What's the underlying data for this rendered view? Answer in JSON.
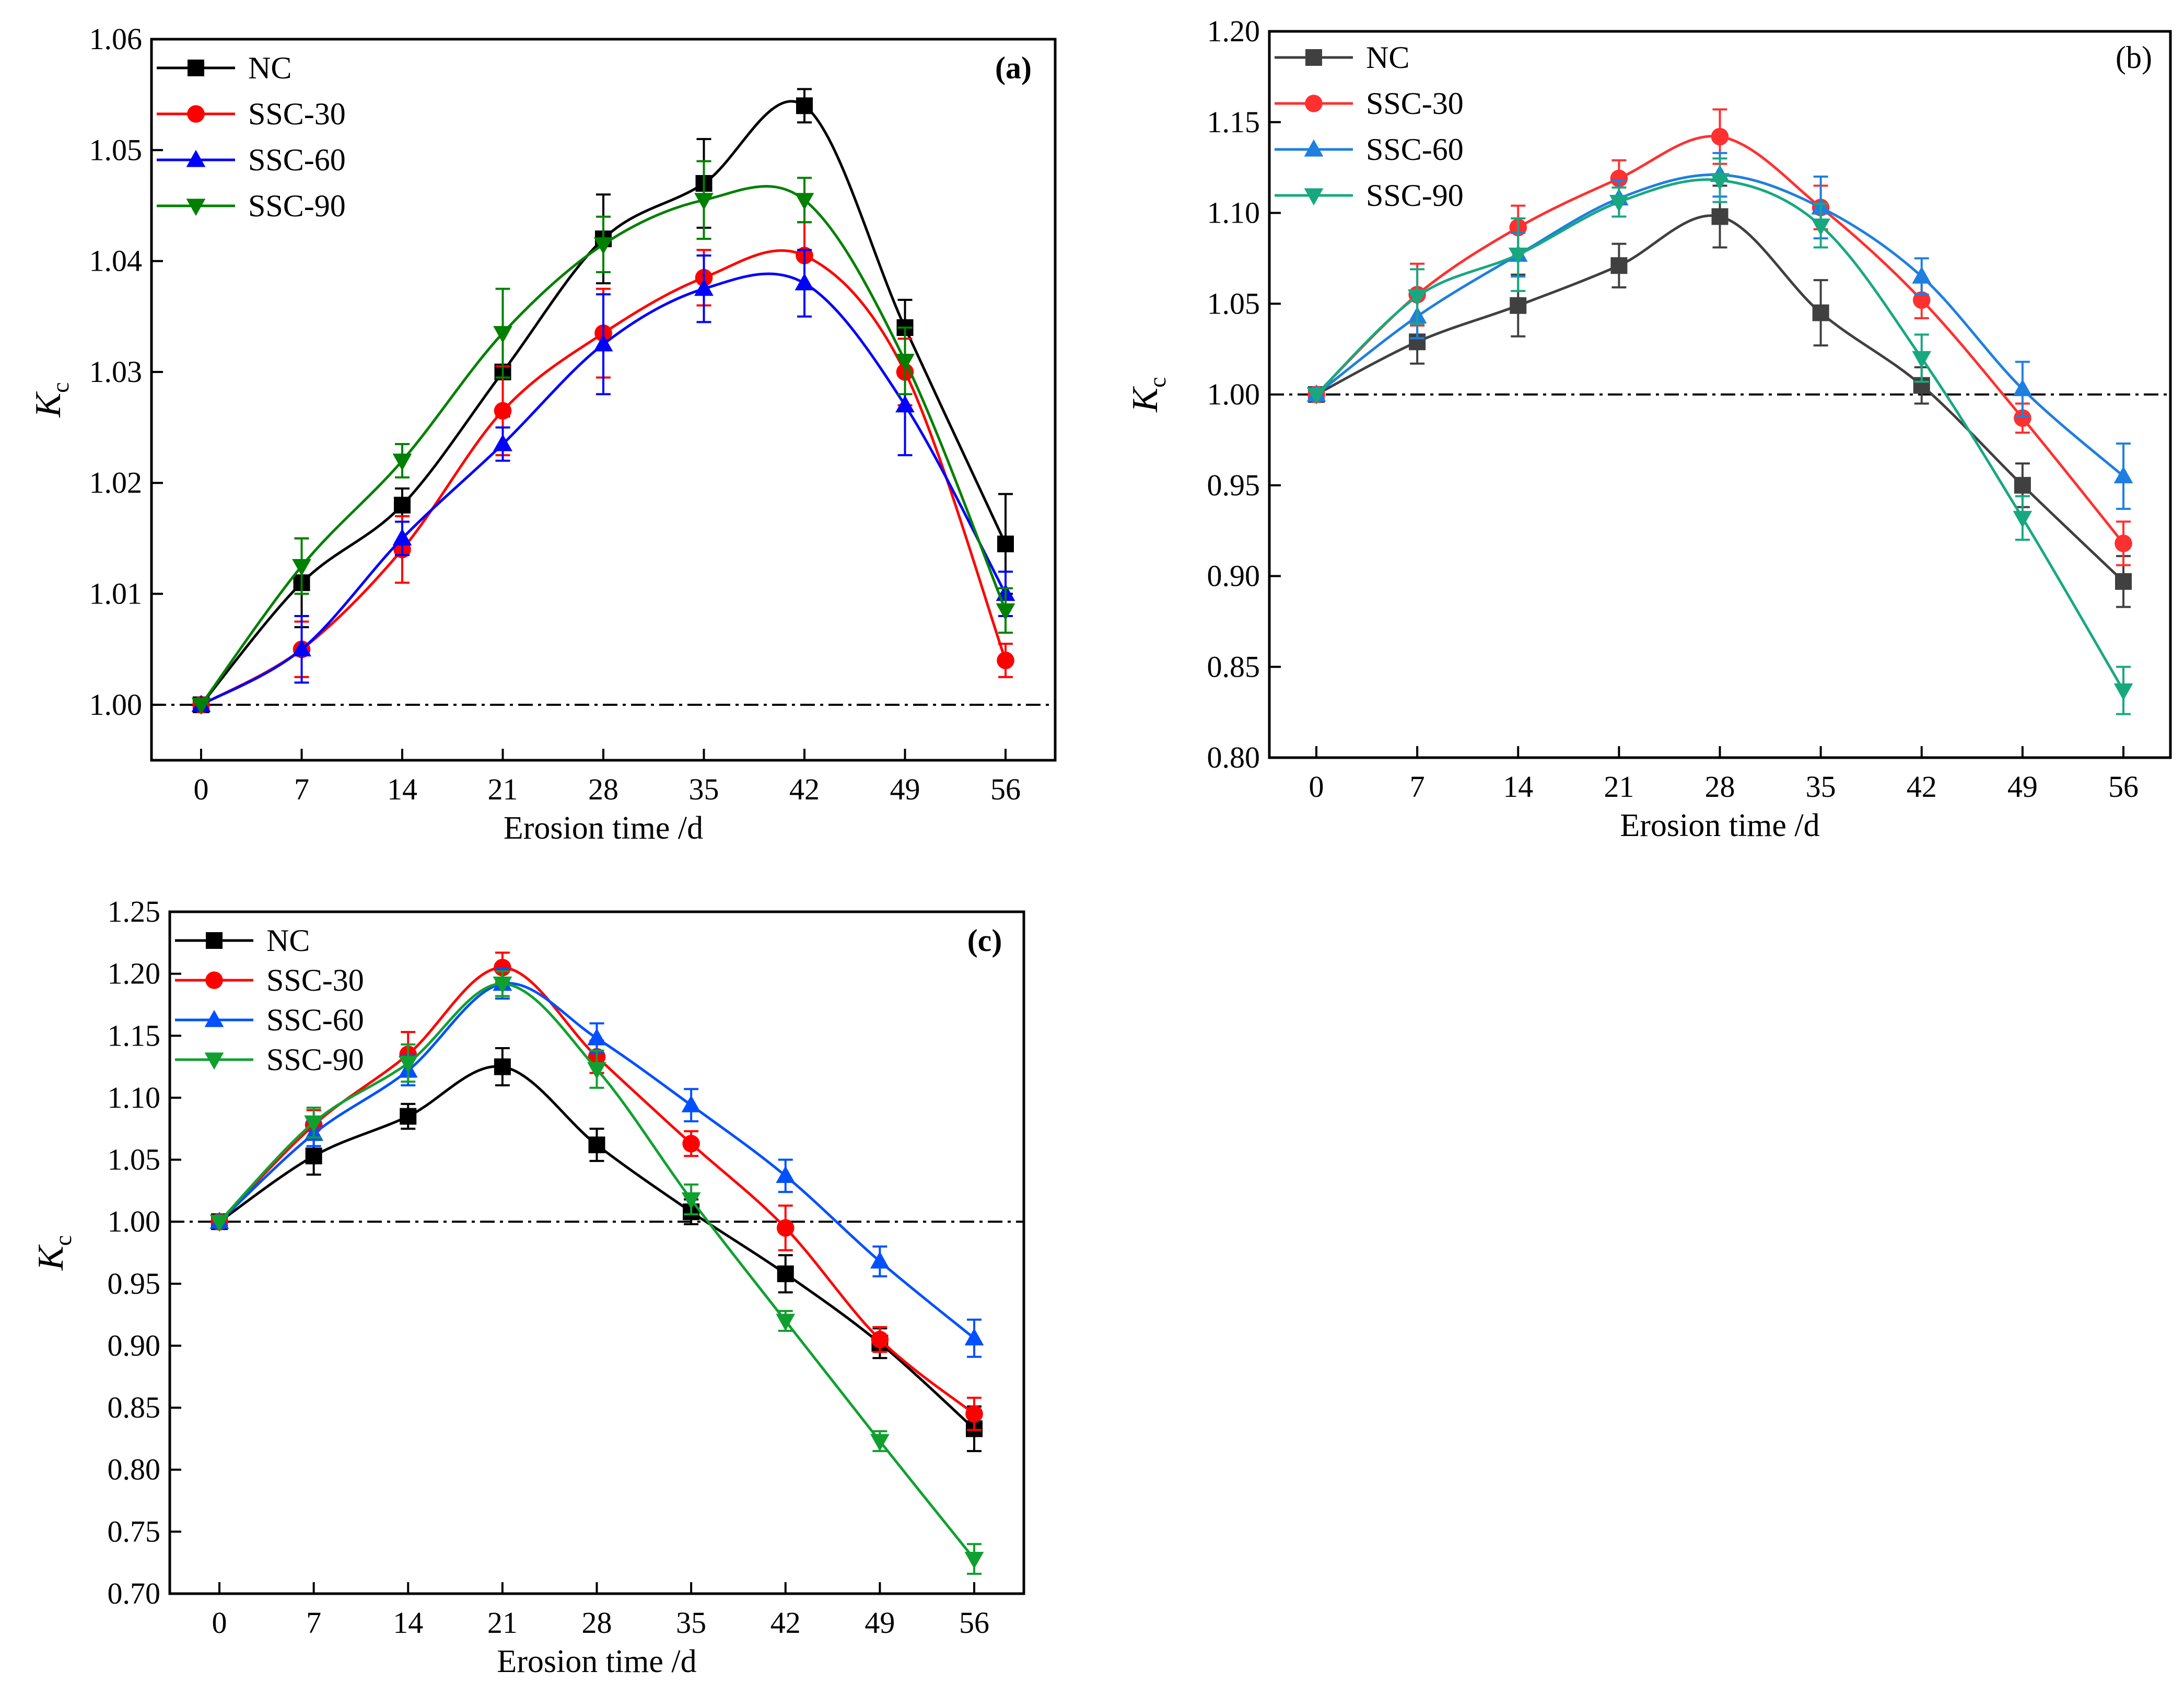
{
  "chart_data": [
    {
      "type": "line",
      "panel_label": "(a)",
      "label_bold": true,
      "xlabel": "Erosion time /d",
      "ylabel": "K",
      "ylabel_sub": "c",
      "x": [
        0,
        7,
        14,
        21,
        28,
        35,
        42,
        49,
        56
      ],
      "xticks": [
        "0",
        "7",
        "14",
        "21",
        "28",
        "35",
        "42",
        "49",
        "56"
      ],
      "ylim": [
        0.995,
        1.06
      ],
      "yticks": [
        "1.00",
        "1.01",
        "1.02",
        "1.03",
        "1.04",
        "1.05",
        "1.06"
      ],
      "reference_line": 1.0,
      "legend_position": "top-left",
      "series": [
        {
          "name": "NC",
          "color": "#000000",
          "marker": "square",
          "values": [
            1.0,
            1.011,
            1.018,
            1.03,
            1.042,
            1.047,
            1.054,
            1.034,
            1.0145
          ],
          "errors": [
            0,
            0.004,
            0.0015,
            0.004,
            0.004,
            0.004,
            0.0015,
            0.0025,
            0.0045
          ]
        },
        {
          "name": "SSC-30",
          "color": "#ff0000",
          "marker": "circle",
          "values": [
            1.0,
            1.005,
            1.014,
            1.0265,
            1.0335,
            1.0385,
            1.0405,
            1.03,
            1.004
          ],
          "errors": [
            0,
            0.0025,
            0.003,
            0.004,
            0.004,
            0.0025,
            0.003,
            0.003,
            0.0015
          ]
        },
        {
          "name": "SSC-60",
          "color": "#0000ff",
          "marker": "triangle-up",
          "values": [
            1.0,
            1.005,
            1.015,
            1.0235,
            1.0325,
            1.0375,
            1.038,
            1.027,
            1.01
          ],
          "errors": [
            0,
            0.003,
            0.0015,
            0.0015,
            0.0045,
            0.003,
            0.003,
            0.0045,
            0.002
          ]
        },
        {
          "name": "SSC-90",
          "color": "#008000",
          "marker": "triangle-down",
          "values": [
            1.0,
            1.0125,
            1.022,
            1.0335,
            1.0415,
            1.0455,
            1.0455,
            1.031,
            1.0085
          ],
          "errors": [
            0,
            0.0025,
            0.0015,
            0.004,
            0.0025,
            0.0035,
            0.002,
            0.003,
            0.002
          ]
        }
      ]
    },
    {
      "type": "line",
      "panel_label": "(b)",
      "label_bold": false,
      "xlabel": "Erosion time /d",
      "ylabel": "K",
      "ylabel_sub": "c",
      "x": [
        0,
        7,
        14,
        21,
        28,
        35,
        42,
        49,
        56
      ],
      "xticks": [
        "0",
        "7",
        "14",
        "21",
        "28",
        "35",
        "42",
        "49",
        "56"
      ],
      "ylim": [
        0.8,
        1.2
      ],
      "yticks": [
        "0.80",
        "0.85",
        "0.90",
        "0.95",
        "1.00",
        "1.05",
        "1.10",
        "1.15",
        "1.20"
      ],
      "reference_line": 1.0,
      "legend_position": "top-left",
      "series": [
        {
          "name": "NC",
          "color": "#404040",
          "marker": "square",
          "values": [
            1.0,
            1.029,
            1.049,
            1.071,
            1.098,
            1.045,
            1.005,
            0.95,
            0.897
          ],
          "errors": [
            0,
            0.012,
            0.017,
            0.012,
            0.017,
            0.018,
            0.01,
            0.012,
            0.014
          ]
        },
        {
          "name": "SSC-30",
          "color": "#ff3030",
          "marker": "circle",
          "values": [
            1.0,
            1.055,
            1.092,
            1.119,
            1.142,
            1.103,
            1.052,
            0.987,
            0.918
          ],
          "errors": [
            0,
            0.017,
            0.012,
            0.01,
            0.015,
            0.012,
            0.01,
            0.008,
            0.012
          ]
        },
        {
          "name": "SSC-60",
          "color": "#1e7fe0",
          "marker": "triangle-up",
          "values": [
            1.0,
            1.043,
            1.077,
            1.108,
            1.121,
            1.103,
            1.065,
            1.003,
            0.955
          ],
          "errors": [
            0,
            0.012,
            0.012,
            0.01,
            0.012,
            0.017,
            0.01,
            0.015,
            0.018
          ]
        },
        {
          "name": "SSC-90",
          "color": "#18a880",
          "marker": "triangle-down",
          "values": [
            1.0,
            1.054,
            1.077,
            1.106,
            1.118,
            1.093,
            1.02,
            0.932,
            0.837
          ],
          "errors": [
            0,
            0.015,
            0.02,
            0.008,
            0.012,
            0.012,
            0.013,
            0.012,
            0.013
          ]
        }
      ]
    },
    {
      "type": "line",
      "panel_label": "(c)",
      "label_bold": true,
      "xlabel": "Erosion time /d",
      "ylabel": "K",
      "ylabel_sub": "c",
      "x": [
        0,
        7,
        14,
        21,
        28,
        35,
        42,
        49,
        56
      ],
      "xticks": [
        "0",
        "7",
        "14",
        "21",
        "28",
        "35",
        "42",
        "49",
        "56"
      ],
      "ylim": [
        0.7,
        1.25
      ],
      "yticks": [
        "0.70",
        "0.75",
        "0.80",
        "0.85",
        "0.90",
        "0.95",
        "1.00",
        "1.05",
        "1.10",
        "1.15",
        "1.20",
        "1.25"
      ],
      "reference_line": 1.0,
      "legend_position": "top-left",
      "series": [
        {
          "name": "NC",
          "color": "#000000",
          "marker": "square",
          "values": [
            1.0,
            1.053,
            1.085,
            1.125,
            1.062,
            1.008,
            0.958,
            0.902,
            0.833
          ],
          "errors": [
            0,
            0.015,
            0.01,
            0.015,
            0.013,
            0.01,
            0.015,
            0.012,
            0.018
          ]
        },
        {
          "name": "SSC-30",
          "color": "#ff0000",
          "marker": "circle",
          "values": [
            1.0,
            1.078,
            1.135,
            1.205,
            1.133,
            1.063,
            0.995,
            0.905,
            0.845
          ],
          "errors": [
            0,
            0.012,
            0.018,
            0.012,
            0.013,
            0.01,
            0.018,
            0.01,
            0.013
          ]
        },
        {
          "name": "SSC-60",
          "color": "#0050ff",
          "marker": "triangle-up",
          "values": [
            1.0,
            1.071,
            1.122,
            1.192,
            1.148,
            1.094,
            1.037,
            0.968,
            0.906
          ],
          "errors": [
            0,
            0.01,
            0.012,
            0.012,
            0.012,
            0.013,
            0.013,
            0.012,
            0.015
          ]
        },
        {
          "name": "SSC-90",
          "color": "#10a030",
          "marker": "triangle-down",
          "values": [
            1.0,
            1.08,
            1.128,
            1.192,
            1.123,
            1.018,
            0.92,
            0.823,
            0.728
          ],
          "errors": [
            0,
            0.012,
            0.015,
            0.01,
            0.015,
            0.012,
            0.008,
            0.008,
            0.012
          ]
        }
      ]
    }
  ]
}
